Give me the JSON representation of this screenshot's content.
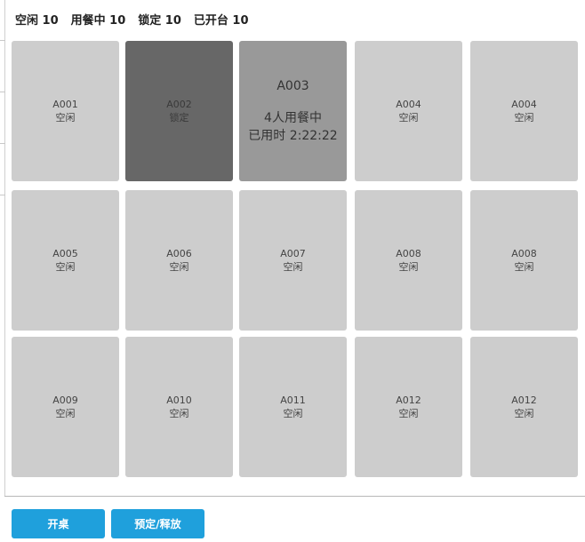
{
  "status": {
    "idle": "空闲 10",
    "dining": "用餐中 10",
    "locked": "锁定 10",
    "opened": "已开台 10"
  },
  "tables": [
    {
      "code": "A001",
      "status": "空闲",
      "state": "idle"
    },
    {
      "code": "A002",
      "status": "锁定",
      "state": "locked"
    },
    {
      "code": "A003",
      "diners": "4人用餐中",
      "elapsed": "已用时 2:22:22",
      "state": "dining"
    },
    {
      "code": "A004",
      "status": "空闲",
      "state": "idle"
    },
    {
      "code": "A004",
      "status": "空闲",
      "state": "idle"
    },
    {
      "code": "A005",
      "status": "空闲",
      "state": "idle"
    },
    {
      "code": "A006",
      "status": "空闲",
      "state": "idle"
    },
    {
      "code": "A007",
      "status": "空闲",
      "state": "idle"
    },
    {
      "code": "A008",
      "status": "空闲",
      "state": "idle"
    },
    {
      "code": "A008",
      "status": "空闲",
      "state": "idle"
    },
    {
      "code": "A009",
      "status": "空闲",
      "state": "idle"
    },
    {
      "code": "A010",
      "status": "空闲",
      "state": "idle"
    },
    {
      "code": "A011",
      "status": "空闲",
      "state": "idle"
    },
    {
      "code": "A012",
      "status": "空闲",
      "state": "idle"
    },
    {
      "code": "A012",
      "status": "空闲",
      "state": "idle"
    }
  ],
  "actions": {
    "open_table": "开桌",
    "reserve_release": "预定/释放"
  },
  "colors": {
    "idle": "#cdcdcd",
    "locked": "#676767",
    "dining": "#999999",
    "button": "#1fa0dc"
  }
}
